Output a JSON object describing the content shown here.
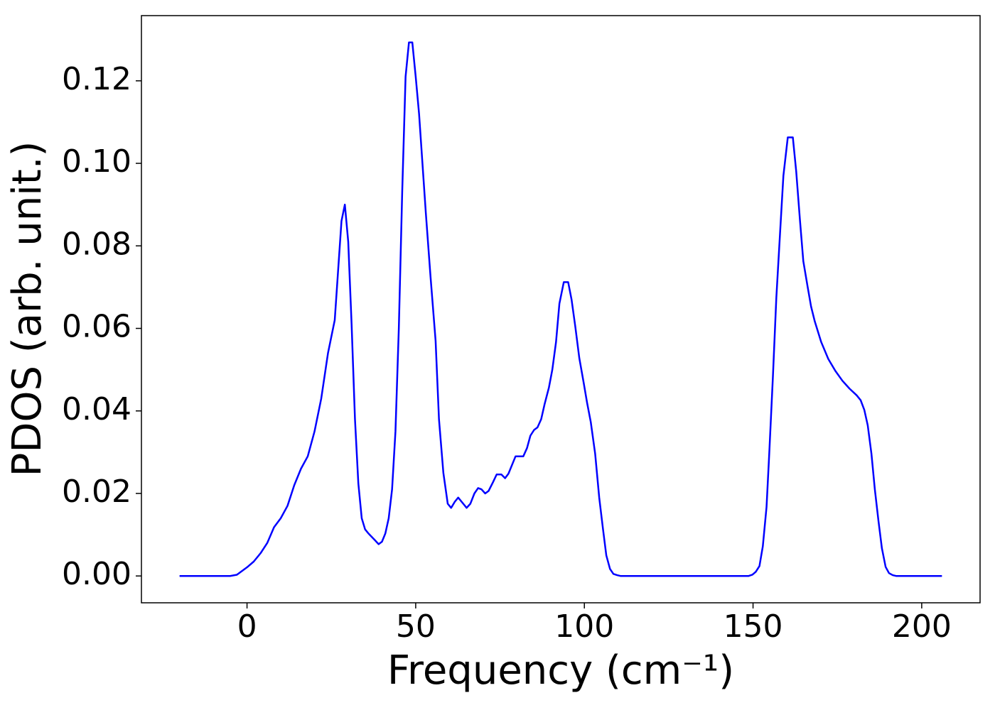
{
  "chart_data": {
    "type": "line",
    "xlabel": "Frequency (cm⁻¹)",
    "ylabel": "PDOS (arb. unit.)",
    "x": [
      -20,
      -5,
      -3,
      0,
      2,
      4,
      6,
      8,
      10,
      12,
      14,
      16,
      18,
      20,
      22,
      24,
      26,
      28,
      29,
      30,
      31,
      32,
      33,
      34,
      35,
      36,
      38,
      39,
      40,
      41,
      42,
      43,
      44,
      45,
      46,
      47,
      48,
      49,
      50,
      51,
      52,
      53,
      54.4,
      55.9,
      56.9,
      58.2,
      59.5,
      60.5,
      61.6,
      62.6,
      64.1,
      65.1,
      66.2,
      67.4,
      68.5,
      69.5,
      70.6,
      71.6,
      72.9,
      74.0,
      75.4,
      76.5,
      77.5,
      78.6,
      79.6,
      81.9,
      83.0,
      84.0,
      85.1,
      86.1,
      87.2,
      88.2,
      89.5,
      90.5,
      91.6,
      92.6,
      93.9,
      95.2,
      96.2,
      97.3,
      98.5,
      99.8,
      100.8,
      101.9,
      103.2,
      104.4,
      105.5,
      106.5,
      107.6,
      108.6,
      109.7,
      110.7,
      148.7,
      149.8,
      150.8,
      151.9,
      152.9,
      154.0,
      154.8,
      155.9,
      156.9,
      158.0,
      159.0,
      160.3,
      161.8,
      162.8,
      163.9,
      164.9,
      166.2,
      167.2,
      168.3,
      170.2,
      172.3,
      174.4,
      176.5,
      178.6,
      180.7,
      181.9,
      183.0,
      184.0,
      185.1,
      186.1,
      187.2,
      188.2,
      189.3,
      190.3,
      191.4,
      192.4,
      206
    ],
    "series": [
      {
        "name": "PDOS",
        "color": "#0000ff",
        "values": [
          0,
          0,
          0.0003,
          0.0021,
          0.0035,
          0.0055,
          0.008,
          0.0118,
          0.014,
          0.017,
          0.022,
          0.026,
          0.029,
          0.035,
          0.043,
          0.054,
          0.062,
          0.086,
          0.09,
          0.081,
          0.061,
          0.038,
          0.0224,
          0.014,
          0.0113,
          0.0103,
          0.0086,
          0.0077,
          0.0083,
          0.0103,
          0.014,
          0.021,
          0.035,
          0.06,
          0.093,
          0.121,
          0.1293,
          0.1293,
          0.121,
          0.112,
          0.1,
          0.088,
          0.0725,
          0.057,
          0.038,
          0.025,
          0.0175,
          0.0165,
          0.018,
          0.019,
          0.0175,
          0.0165,
          0.0175,
          0.02,
          0.0213,
          0.021,
          0.02,
          0.0206,
          0.0227,
          0.0246,
          0.0246,
          0.0237,
          0.0248,
          0.027,
          0.029,
          0.029,
          0.031,
          0.034,
          0.0354,
          0.036,
          0.038,
          0.0416,
          0.0457,
          0.05,
          0.0567,
          0.066,
          0.0712,
          0.0712,
          0.067,
          0.0605,
          0.0528,
          0.0468,
          0.042,
          0.0373,
          0.0296,
          0.019,
          0.0115,
          0.005,
          0.0017,
          0.0005,
          0.0002,
          0,
          0,
          0.0003,
          0.001,
          0.0024,
          0.0072,
          0.0167,
          0.0296,
          0.0485,
          0.0674,
          0.083,
          0.097,
          0.1063,
          0.1063,
          0.098,
          0.0863,
          0.0763,
          0.07,
          0.0653,
          0.0617,
          0.0567,
          0.0526,
          0.0497,
          0.0473,
          0.0454,
          0.0438,
          0.0426,
          0.0402,
          0.0365,
          0.0296,
          0.021,
          0.0132,
          0.0067,
          0.0022,
          0.0007,
          0.0002,
          0,
          0
        ]
      }
    ],
    "xlim": [
      -31.3,
      217.3
    ],
    "xticks": [
      0,
      50,
      100,
      150,
      200
    ],
    "ylim": [
      -0.0065,
      0.1358
    ],
    "yticks": [
      {
        "value": 0,
        "label": "0.00"
      },
      0.02,
      0.04,
      0.06,
      0.08,
      {
        "value": 0.1,
        "label": "0.10"
      },
      0.12
    ],
    "grid": false
  }
}
